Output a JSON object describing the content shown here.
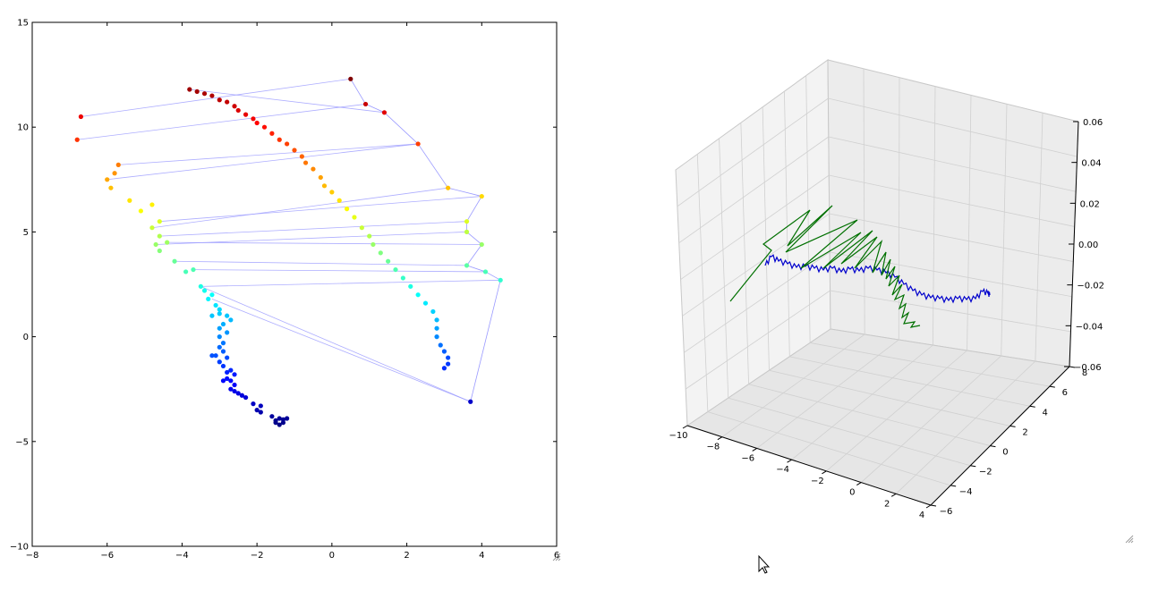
{
  "chart_data": [
    {
      "type": "scatter",
      "panel": "left",
      "title": "",
      "xlabel": "",
      "ylabel": "",
      "xlim": [
        -8,
        6
      ],
      "ylim": [
        -10,
        15
      ],
      "x_ticks": [
        -8,
        -6,
        -4,
        -2,
        0,
        2,
        4,
        6
      ],
      "y_ticks": [
        -10,
        -5,
        0,
        5,
        10,
        15
      ],
      "x_tick_labels": [
        "−8",
        "−6",
        "−4",
        "−2",
        "0",
        "2",
        "4",
        "6"
      ],
      "y_tick_labels": [
        "−10",
        "−5",
        "0",
        "5",
        "10",
        "15"
      ],
      "grid": false,
      "legend": "none",
      "colormap": "jet",
      "connection_line_color": "#9999ff",
      "series": [
        {
          "role": "trajectory_a",
          "points": [
            [
              -1.4,
              -4.2
            ],
            [
              -1.3,
              -4.1
            ],
            [
              -1.5,
              -4.0
            ],
            [
              -1.4,
              -3.9
            ],
            [
              -1.6,
              -3.8
            ],
            [
              -1.3,
              -3.95
            ],
            [
              -1.2,
              -3.9
            ],
            [
              -1.5,
              -4.1
            ],
            [
              -1.9,
              -3.6
            ],
            [
              -2.0,
              -3.5
            ],
            [
              -1.9,
              -3.3
            ],
            [
              -2.1,
              -3.2
            ],
            [
              -2.3,
              -2.9
            ],
            [
              -2.4,
              -2.8
            ],
            [
              -2.5,
              -2.7
            ],
            [
              -2.6,
              -2.6
            ],
            [
              -2.7,
              -2.5
            ],
            [
              -2.6,
              -2.3
            ],
            [
              -2.7,
              -2.1
            ],
            [
              -2.8,
              -2.0
            ],
            [
              -2.6,
              -1.8
            ],
            [
              -2.7,
              -1.6
            ],
            [
              -2.8,
              -1.7
            ],
            [
              -2.9,
              -2.1
            ],
            [
              -2.9,
              -1.4
            ],
            [
              -3.0,
              -1.2
            ],
            [
              -2.8,
              -1.0
            ],
            [
              -3.1,
              -0.9
            ],
            [
              -2.9,
              -0.7
            ],
            [
              -3.2,
              -0.9
            ],
            [
              -3.0,
              -0.5
            ],
            [
              -2.9,
              -0.3
            ],
            [
              -3.0,
              0.0
            ],
            [
              -2.8,
              0.2
            ],
            [
              -3.0,
              0.4
            ],
            [
              -2.9,
              0.6
            ],
            [
              -2.7,
              0.8
            ],
            [
              -2.8,
              1.0
            ],
            [
              -3.0,
              1.1
            ],
            [
              -3.2,
              1.0
            ],
            [
              -3.0,
              1.3
            ],
            [
              -3.1,
              1.5
            ],
            [
              -3.3,
              1.8
            ],
            [
              -3.2,
              2.0
            ],
            [
              -3.4,
              2.2
            ],
            [
              -3.5,
              2.4
            ]
          ]
        },
        {
          "role": "trajectory_b",
          "points": [
            [
              -3.7,
              3.2
            ],
            [
              -3.9,
              3.1
            ],
            [
              -4.2,
              3.6
            ],
            [
              -4.6,
              4.1
            ],
            [
              -4.7,
              4.4
            ],
            [
              -4.4,
              4.5
            ],
            [
              -4.6,
              4.8
            ],
            [
              -4.8,
              5.2
            ],
            [
              -4.6,
              5.5
            ],
            [
              -5.1,
              6.0
            ],
            [
              -4.8,
              6.3
            ],
            [
              -5.4,
              6.5
            ],
            [
              -5.9,
              7.1
            ],
            [
              -6.0,
              7.5
            ],
            [
              -5.8,
              7.8
            ],
            [
              -5.7,
              8.2
            ],
            [
              -6.8,
              9.4
            ],
            [
              -6.7,
              10.5
            ]
          ]
        },
        {
          "role": "trajectory_c",
          "points": [
            [
              -3.8,
              11.8
            ],
            [
              -3.6,
              11.7
            ],
            [
              -3.4,
              11.6
            ],
            [
              -3.2,
              11.5
            ],
            [
              -3.0,
              11.3
            ],
            [
              -2.8,
              11.2
            ],
            [
              -2.6,
              11.0
            ],
            [
              -2.5,
              10.8
            ],
            [
              -2.3,
              10.6
            ],
            [
              -2.1,
              10.4
            ],
            [
              -2.0,
              10.2
            ],
            [
              -1.8,
              10.0
            ],
            [
              -1.6,
              9.7
            ],
            [
              -1.4,
              9.4
            ],
            [
              -1.2,
              9.2
            ],
            [
              -1.0,
              8.9
            ],
            [
              -0.8,
              8.6
            ],
            [
              -0.7,
              8.3
            ],
            [
              -0.5,
              8.0
            ],
            [
              -0.3,
              7.6
            ],
            [
              -0.2,
              7.2
            ],
            [
              0.0,
              6.9
            ],
            [
              0.2,
              6.5
            ],
            [
              0.4,
              6.1
            ],
            [
              0.6,
              5.7
            ],
            [
              0.8,
              5.2
            ],
            [
              1.0,
              4.8
            ],
            [
              1.1,
              4.4
            ],
            [
              1.3,
              4.0
            ],
            [
              1.5,
              3.6
            ],
            [
              1.7,
              3.2
            ],
            [
              1.9,
              2.8
            ],
            [
              2.1,
              2.4
            ],
            [
              2.3,
              2.0
            ],
            [
              2.5,
              1.6
            ],
            [
              2.7,
              1.2
            ],
            [
              2.8,
              0.8
            ],
            [
              2.8,
              0.4
            ],
            [
              2.8,
              0.0
            ],
            [
              2.9,
              -0.4
            ],
            [
              3.0,
              -0.7
            ],
            [
              3.1,
              -1.0
            ],
            [
              3.1,
              -1.3
            ],
            [
              3.0,
              -1.5
            ]
          ]
        },
        {
          "role": "trajectory_d",
          "points": [
            [
              0.5,
              12.3
            ],
            [
              0.9,
              11.1
            ],
            [
              1.4,
              10.7
            ],
            [
              2.3,
              9.2
            ],
            [
              3.1,
              7.1
            ],
            [
              4.0,
              6.7
            ],
            [
              3.6,
              5.5
            ],
            [
              3.6,
              5.0
            ],
            [
              4.0,
              4.4
            ],
            [
              3.6,
              3.4
            ],
            [
              4.1,
              3.1
            ],
            [
              4.5,
              2.7
            ],
            [
              3.7,
              -3.1
            ]
          ]
        }
      ],
      "connections": [
        [
          [
            -6.7,
            10.5
          ],
          [
            0.5,
            12.3
          ]
        ],
        [
          [
            -6.8,
            9.4
          ],
          [
            0.9,
            11.1
          ]
        ],
        [
          [
            -3.8,
            11.8
          ],
          [
            1.4,
            10.7
          ]
        ],
        [
          [
            -5.7,
            8.2
          ],
          [
            2.3,
            9.2
          ]
        ],
        [
          [
            -6.0,
            7.5
          ],
          [
            2.3,
            9.2
          ]
        ],
        [
          [
            -4.8,
            5.2
          ],
          [
            3.1,
            7.1
          ]
        ],
        [
          [
            -4.6,
            5.5
          ],
          [
            4.0,
            6.7
          ]
        ],
        [
          [
            -4.6,
            4.8
          ],
          [
            3.6,
            5.5
          ]
        ],
        [
          [
            -4.7,
            4.4
          ],
          [
            3.6,
            5.0
          ]
        ],
        [
          [
            -4.4,
            4.5
          ],
          [
            4.0,
            4.4
          ]
        ],
        [
          [
            -4.2,
            3.6
          ],
          [
            3.6,
            3.4
          ]
        ],
        [
          [
            -3.7,
            3.2
          ],
          [
            4.1,
            3.1
          ]
        ],
        [
          [
            -3.5,
            2.4
          ],
          [
            4.5,
            2.7
          ]
        ],
        [
          [
            -3.5,
            2.4
          ],
          [
            3.7,
            -3.1
          ]
        ],
        [
          [
            -3.2,
            1.8
          ],
          [
            3.7,
            -3.1
          ]
        ]
      ]
    },
    {
      "type": "line",
      "panel": "right",
      "title": "",
      "projection": "3d",
      "xlabel": "",
      "ylabel": "",
      "zlabel": "",
      "xlim": [
        -10,
        4
      ],
      "ylim": [
        -6,
        8
      ],
      "zlim": [
        -0.06,
        0.06
      ],
      "x_tick_labels": [
        "−10",
        "−8",
        "−6",
        "−4",
        "−2",
        "0",
        "2",
        "4"
      ],
      "y_tick_labels": [
        "−6",
        "−4",
        "−2",
        "0",
        "2",
        "4",
        "6",
        "8"
      ],
      "z_tick_labels": [
        "−0.06",
        "−0.04",
        "−0.02",
        "0.00",
        "0.02",
        "0.04",
        "0.06"
      ],
      "grid": true,
      "legend": "none",
      "series": [
        {
          "color": "#0000cc",
          "role": "smooth_path"
        },
        {
          "color": "#007000",
          "role": "zigzag_path"
        }
      ]
    }
  ]
}
